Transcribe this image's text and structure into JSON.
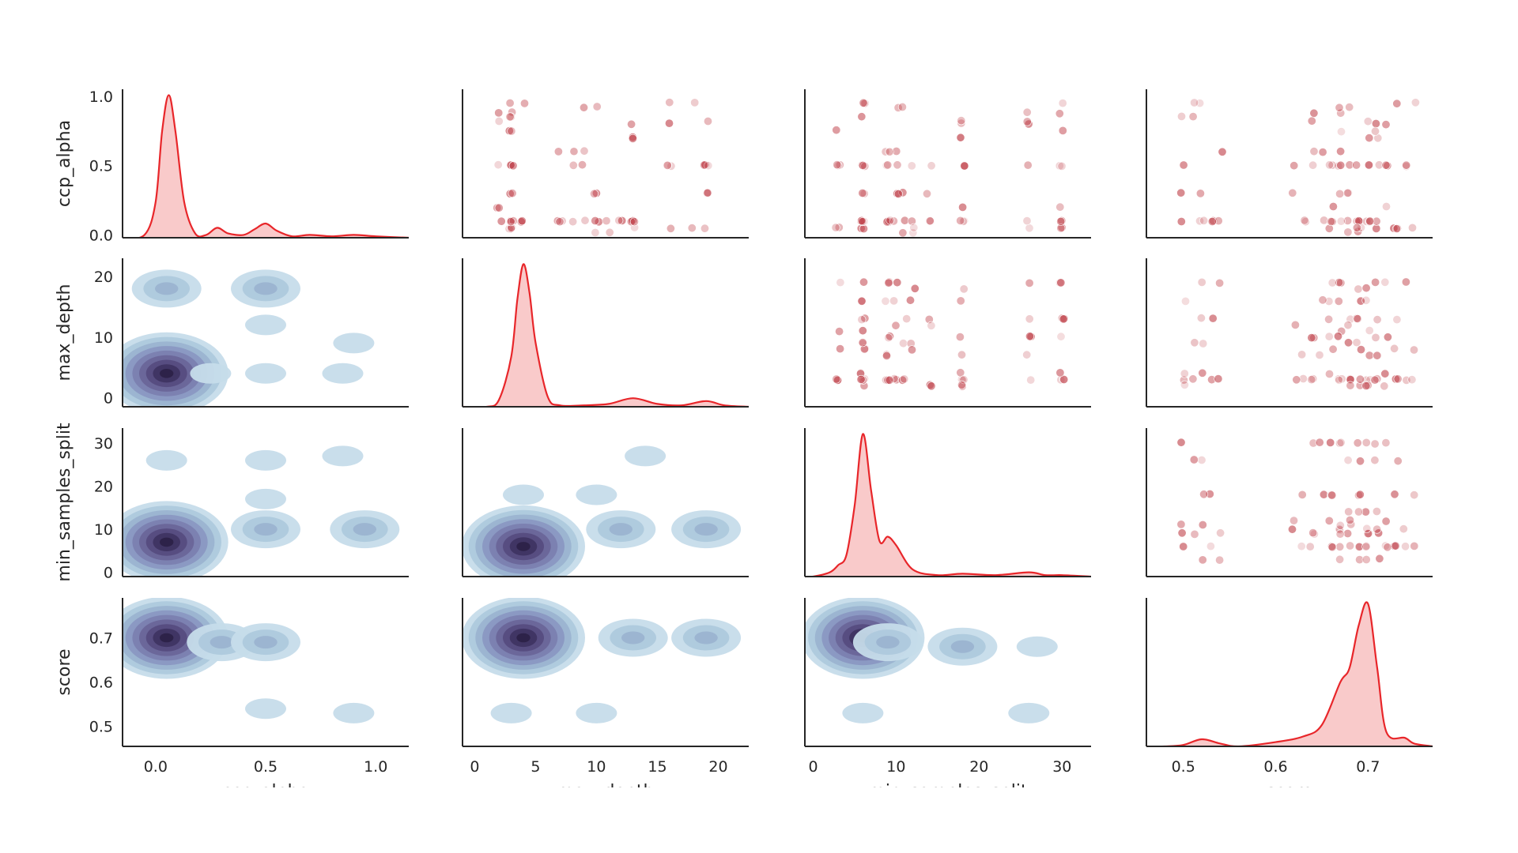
{
  "chart_data": {
    "type": "scatter",
    "kind": "pairplot",
    "variables": [
      "ccp_alpha",
      "max_depth",
      "min_samples_split",
      "score"
    ],
    "ylabels": [
      "ccp_alpha",
      "max_depth",
      "min_samples_split",
      "score"
    ],
    "xlabels_partially_cropped": [
      "ccp_alpha",
      "max_depth",
      "min_samples_split",
      "score"
    ],
    "diagonal": "kde",
    "upper": "scatter",
    "lower": "kde_filled",
    "ranges": {
      "ccp_alpha": [
        -0.15,
        1.15
      ],
      "max_depth": [
        -1,
        22.5
      ],
      "min_samples_split": [
        -1,
        33.5
      ],
      "score": [
        0.46,
        0.77
      ]
    },
    "row_ylim": {
      "ccp_alpha": [
        -0.02,
        1.05
      ],
      "max_depth": [
        -1.5,
        23
      ],
      "min_samples_split": [
        -1,
        33.5
      ],
      "score": [
        0.455,
        0.79
      ]
    },
    "ticks": {
      "ccp_alpha": [
        "0.0",
        "0.5",
        "1.0"
      ],
      "ccp_alpha_values": [
        0,
        0.5,
        1.0
      ],
      "max_depth_y": [
        "0",
        "10",
        "20"
      ],
      "max_depth_y_values": [
        0,
        10,
        20
      ],
      "max_depth_x": [
        "0",
        "5",
        "10",
        "15",
        "20"
      ],
      "max_depth_x_values": [
        0,
        5,
        10,
        15,
        20
      ],
      "min_samples_split_y": [
        "0",
        "10",
        "20",
        "30"
      ],
      "min_samples_split_y_values": [
        0,
        10,
        20,
        30
      ],
      "min_samples_split_x": [
        "0",
        "10",
        "20",
        "30"
      ],
      "min_samples_split_x_values": [
        0,
        10,
        20,
        30
      ],
      "score": [
        "0.5",
        "0.6",
        "0.7"
      ],
      "score_values": [
        0.5,
        0.6,
        0.7
      ]
    },
    "kde_diagonal": {
      "ccp_alpha": {
        "x": [
          -0.15,
          -0.05,
          0.0,
          0.03,
          0.06,
          0.09,
          0.13,
          0.18,
          0.23,
          0.28,
          0.33,
          0.4,
          0.45,
          0.5,
          0.55,
          0.62,
          0.7,
          0.8,
          0.9,
          1.0,
          1.15
        ],
        "y": [
          0.0,
          0.02,
          0.25,
          0.75,
          1.0,
          0.75,
          0.25,
          0.03,
          0.02,
          0.07,
          0.03,
          0.02,
          0.06,
          0.1,
          0.05,
          0.01,
          0.02,
          0.01,
          0.02,
          0.01,
          0.0
        ]
      },
      "max_depth": {
        "x": [
          -1,
          1,
          2,
          3,
          3.5,
          4,
          4.5,
          5,
          6,
          7,
          9,
          11,
          13,
          15,
          17,
          19,
          20.5,
          22.5
        ],
        "y": [
          0.0,
          0.0,
          0.05,
          0.35,
          0.75,
          1.0,
          0.8,
          0.45,
          0.07,
          0.01,
          0.01,
          0.02,
          0.06,
          0.02,
          0.01,
          0.04,
          0.01,
          0.0
        ]
      },
      "min_samples_split": {
        "x": [
          -1,
          0,
          2,
          3,
          4,
          5,
          6,
          7,
          8,
          9,
          10,
          12,
          15,
          18,
          22,
          26,
          28,
          30,
          33.5
        ],
        "y": [
          0.0,
          0.0,
          0.03,
          0.08,
          0.15,
          0.5,
          1.0,
          0.6,
          0.25,
          0.28,
          0.22,
          0.05,
          0.01,
          0.02,
          0.01,
          0.03,
          0.01,
          0.01,
          0.0
        ]
      },
      "score": {
        "x": [
          0.46,
          0.48,
          0.5,
          0.52,
          0.54,
          0.56,
          0.6,
          0.63,
          0.65,
          0.67,
          0.68,
          0.69,
          0.7,
          0.71,
          0.72,
          0.74,
          0.75,
          0.77
        ],
        "y": [
          0.0,
          0.0,
          0.01,
          0.05,
          0.02,
          0.0,
          0.03,
          0.07,
          0.15,
          0.45,
          0.55,
          0.85,
          1.0,
          0.55,
          0.1,
          0.06,
          0.02,
          0.0
        ]
      }
    },
    "scatter_points": {
      "ccp_alpha": [
        0.95,
        0.92,
        0.85,
        0.82,
        0.7,
        0.6,
        0.5,
        0.5,
        0.3,
        0.3,
        0.2,
        0.1,
        0.1,
        0.05,
        0.05,
        0.02,
        0.95,
        0.88,
        0.8,
        0.5,
        0.5,
        0.3,
        0.1,
        0.1,
        0.1,
        0.05,
        0.6,
        0.5,
        0.5,
        0.1,
        0.1,
        0.75,
        0.5,
        0.1,
        0.1,
        0.5,
        0.1,
        0.1,
        0.05
      ],
      "max_depth": [
        2,
        2,
        2,
        3,
        3,
        3,
        3,
        3,
        3,
        3,
        3,
        3,
        3,
        3,
        4,
        4,
        7,
        7,
        8,
        8,
        9,
        9,
        10,
        10,
        10,
        11,
        12,
        13,
        13,
        13,
        13,
        16,
        16,
        16,
        18,
        19,
        19,
        19,
        19
      ],
      "min_samples_split": [
        3,
        3,
        3,
        6,
        6,
        6,
        6,
        6,
        6,
        6,
        6,
        9,
        9,
        9,
        9,
        9,
        10,
        10,
        11,
        11,
        12,
        14,
        18,
        18,
        18,
        26,
        26,
        30,
        30,
        6,
        10,
        12,
        14,
        18,
        18,
        26,
        30,
        30,
        30
      ],
      "score": [
        0.5,
        0.5,
        0.51,
        0.52,
        0.52,
        0.53,
        0.54,
        0.63,
        0.64,
        0.65,
        0.66,
        0.67,
        0.67,
        0.68,
        0.68,
        0.69,
        0.69,
        0.7,
        0.7,
        0.71,
        0.71,
        0.72,
        0.73,
        0.74,
        0.75,
        0.62,
        0.66,
        0.68,
        0.7,
        0.72,
        0.64,
        0.66,
        0.67,
        0.69,
        0.71,
        0.73,
        0.67,
        0.69,
        0.7
      ]
    },
    "kde_lower_modes": [
      {
        "x": "ccp_alpha",
        "y": "max_depth",
        "centers": [
          [
            0.05,
            4
          ],
          [
            0.05,
            18
          ],
          [
            0.5,
            18
          ],
          [
            0.5,
            12
          ],
          [
            0.9,
            9
          ],
          [
            0.85,
            4
          ],
          [
            0.5,
            4
          ],
          [
            0.25,
            4
          ]
        ]
      },
      {
        "x": "ccp_alpha",
        "y": "min_samples_split",
        "centers": [
          [
            0.05,
            7
          ],
          [
            0.5,
            10
          ],
          [
            0.95,
            10
          ],
          [
            0.5,
            17
          ],
          [
            0.5,
            26
          ],
          [
            0.85,
            27
          ],
          [
            0.05,
            26
          ]
        ]
      },
      {
        "x": "ccp_alpha",
        "y": "score",
        "centers": [
          [
            0.05,
            0.7
          ],
          [
            0.3,
            0.69
          ],
          [
            0.5,
            0.69
          ],
          [
            0.5,
            0.54
          ],
          [
            0.9,
            0.53
          ]
        ]
      },
      {
        "x": "max_depth",
        "y": "min_samples_split",
        "centers": [
          [
            4,
            6
          ],
          [
            12,
            10
          ],
          [
            19,
            10
          ],
          [
            14,
            27
          ],
          [
            10,
            18
          ],
          [
            4,
            18
          ]
        ]
      },
      {
        "x": "max_depth",
        "y": "score",
        "centers": [
          [
            4,
            0.7
          ],
          [
            13,
            0.7
          ],
          [
            19,
            0.7
          ],
          [
            3,
            0.53
          ],
          [
            10,
            0.53
          ]
        ]
      },
      {
        "x": "min_samples_split",
        "y": "score",
        "centers": [
          [
            6,
            0.7
          ],
          [
            9,
            0.69
          ],
          [
            18,
            0.68
          ],
          [
            27,
            0.68
          ],
          [
            6,
            0.53
          ],
          [
            26,
            0.53
          ]
        ]
      }
    ]
  }
}
